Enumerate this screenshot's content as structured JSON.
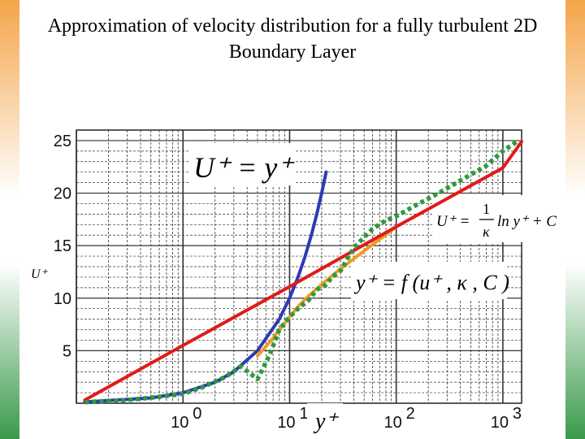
{
  "title_line1": "Approximation of velocity distribution for a fully turbulent 2D",
  "title_line2": "Boundary Layer",
  "colors": {
    "viscous": "#2e3bb5",
    "log_law": "#e01b1b",
    "buffer_fit": "#f29b1f",
    "measured": "#2e9a3b",
    "grid": "#333333"
  },
  "chart_data": {
    "type": "line",
    "title": "Approximation of velocity distribution for a fully turbulent 2D Boundary Layer",
    "xlabel": "y⁺",
    "ylabel": "U⁺",
    "x_scale": "log",
    "xlim": [
      0.1,
      1500
    ],
    "ylim": [
      0,
      26
    ],
    "xticks": [
      {
        "value": 1,
        "base": "10",
        "exp": "0"
      },
      {
        "value": 10,
        "base": "10",
        "exp": "1"
      },
      {
        "value": 100,
        "base": "10",
        "exp": "2"
      },
      {
        "value": 1000,
        "base": "10",
        "exp": "3"
      }
    ],
    "yticks": [
      5,
      10,
      15,
      20,
      25
    ],
    "grid": true,
    "annotations": {
      "viscous_eq": "U⁺ = y⁺",
      "log_eq_lhs": "U⁺ =",
      "log_eq_num": "1",
      "log_eq_den": "κ",
      "log_eq_rest": "ln y⁺ + C",
      "buffer_eq": "y⁺ = f (u⁺ , κ , C )"
    },
    "series": [
      {
        "key": "viscous",
        "x": [
          0.12,
          0.5,
          1,
          2,
          3,
          5,
          8,
          10,
          12,
          14,
          16,
          18,
          20,
          22
        ],
        "y": [
          0.12,
          0.5,
          1,
          2,
          3,
          5,
          8,
          10,
          12,
          14,
          16,
          18,
          20,
          22
        ]
      },
      {
        "key": "log_law",
        "x": [
          0.12,
          1,
          10,
          100,
          1000,
          1500
        ],
        "y": [
          0.3,
          5.5,
          11.1,
          16.8,
          22.4,
          24.9
        ]
      },
      {
        "key": "buffer_fit",
        "x": [
          5,
          6,
          7,
          8,
          10,
          12,
          15,
          20,
          30,
          50,
          100,
          150
        ],
        "y": [
          4.5,
          5.4,
          6.2,
          7.0,
          8.2,
          9.2,
          10.2,
          11.3,
          12.8,
          14.5,
          16.8,
          17.8
        ]
      },
      {
        "key": "measured",
        "x": [
          0.12,
          0.3,
          0.6,
          1,
          1.5,
          2.5,
          3.5,
          5,
          6.5,
          8,
          10,
          12,
          15,
          18,
          22,
          25,
          30,
          35,
          40,
          50,
          60,
          80,
          100,
          150,
          250,
          400,
          700,
          1000,
          1400
        ],
        "y": [
          0.1,
          0.3,
          0.6,
          0.9,
          1.5,
          2.5,
          3.5,
          2.3,
          4.6,
          7.0,
          8.2,
          9.0,
          9.8,
          10.8,
          11.3,
          12.0,
          12.6,
          13.8,
          14.8,
          15.8,
          16.6,
          17.4,
          17.8,
          18.8,
          20.0,
          21.2,
          22.6,
          24.0,
          25.0
        ]
      }
    ]
  }
}
